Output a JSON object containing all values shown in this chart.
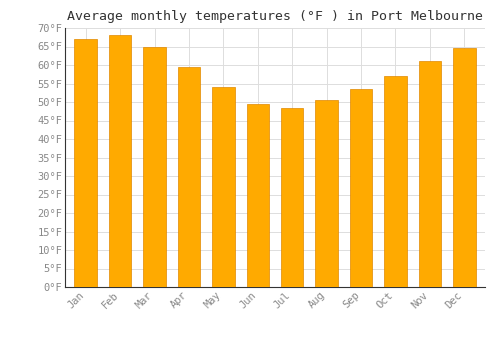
{
  "title": "Average monthly temperatures (°F ) in Port Melbourne",
  "months": [
    "Jan",
    "Feb",
    "Mar",
    "Apr",
    "May",
    "Jun",
    "Jul",
    "Aug",
    "Sep",
    "Oct",
    "Nov",
    "Dec"
  ],
  "values": [
    67,
    68,
    65,
    59.5,
    54,
    49.5,
    48.5,
    50.5,
    53.5,
    57,
    61,
    64.5
  ],
  "bar_color": "#FFAA00",
  "bar_edge_color": "#E08800",
  "background_color": "#FFFFFF",
  "plot_bg_color": "#FFFFFF",
  "grid_color": "#DDDDDD",
  "ylim": [
    0,
    70
  ],
  "yticks": [
    0,
    5,
    10,
    15,
    20,
    25,
    30,
    35,
    40,
    45,
    50,
    55,
    60,
    65,
    70
  ],
  "title_fontsize": 9.5,
  "tick_fontsize": 7.5,
  "tick_color": "#888888",
  "font_family": "monospace"
}
